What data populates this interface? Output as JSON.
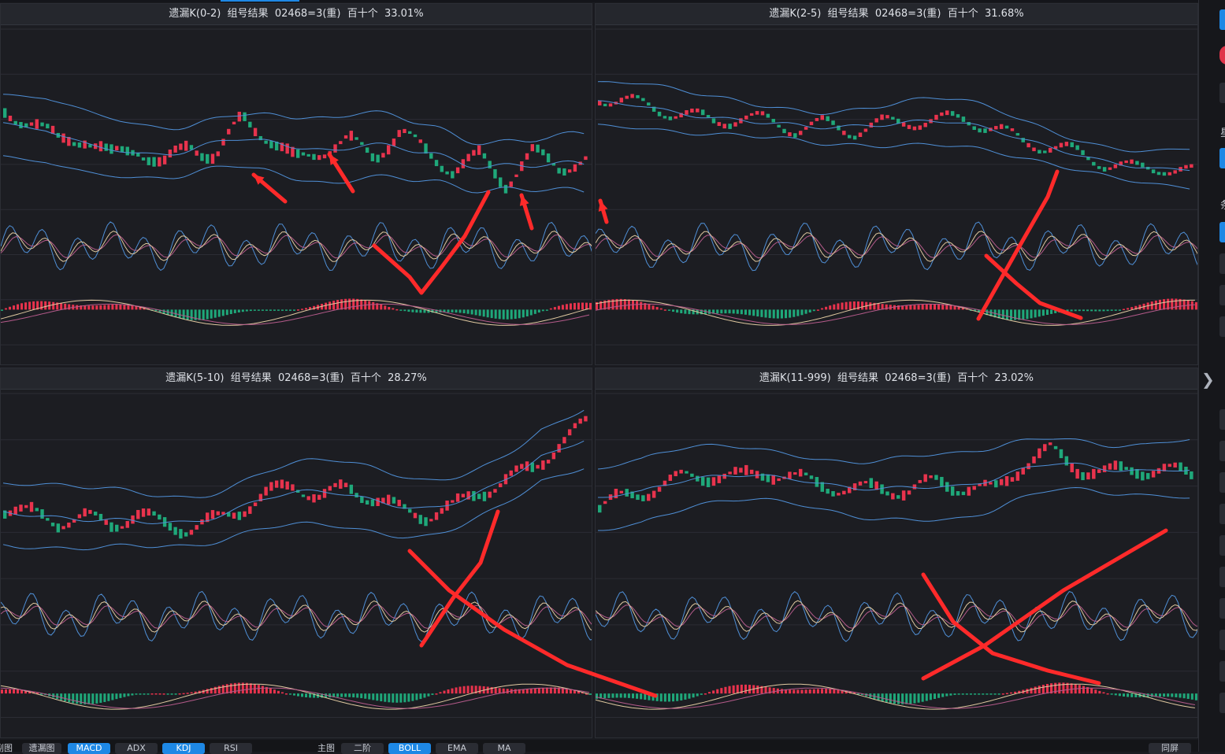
{
  "panels": [
    {
      "title": "遗漏K(0-2)  组号结果  02468=3(重)  百十个  33.01%"
    },
    {
      "title": "遗漏K(2-5)  组号结果  02468=3(重)  百十个  31.68%"
    },
    {
      "title": "遗漏K(5-10)  组号结果  02468=3(重)  百十个  28.27%"
    },
    {
      "title": "遗漏K(11-999)  组号结果  02468=3(重)  百十个  23.02%"
    }
  ],
  "bottom": {
    "left_labels": [
      "副图",
      "遗漏图"
    ],
    "sub_tabs": [
      "MACD",
      "ADX",
      "KDJ",
      "RSI"
    ],
    "main_label": "主图",
    "main_tabs": [
      "二阶",
      "BOLL",
      "EMA",
      "MA"
    ],
    "right_button": "同屏"
  },
  "sidebar": {
    "chars": [
      "星",
      "条"
    ]
  },
  "chart_data": [
    {
      "type": "candlestick",
      "title": "遗漏K(0-2)  组号结果  02468=3(重)  百十个  33.01%",
      "indicators": [
        "BOLL",
        "KDJ",
        "MACD"
      ],
      "trend": "down then range"
    },
    {
      "type": "candlestick",
      "title": "遗漏K(2-5)  组号结果  02468=3(重)  百十个  31.68%",
      "indicators": [
        "BOLL",
        "KDJ",
        "MACD"
      ],
      "trend": "flat then down"
    },
    {
      "type": "candlestick",
      "title": "遗漏K(5-10)  组号结果  02468=3(重)  百十个  28.27%",
      "indicators": [
        "BOLL",
        "KDJ",
        "MACD"
      ],
      "trend": "flat then up"
    },
    {
      "type": "candlestick",
      "title": "遗漏K(11-999)  组号结果  02468=3(重)  百十个  23.02%",
      "indicators": [
        "BOLL",
        "KDJ",
        "MACD"
      ],
      "trend": "slow up"
    }
  ],
  "colors": {
    "up": "#e8334d",
    "down": "#1fa87a",
    "boll": "#4f8fd6",
    "kdj_j": "#4f8fd6",
    "kdj_k": "#e0c9a0",
    "kdj_d": "#b45a8a",
    "annotation": "#ff2a2a"
  }
}
